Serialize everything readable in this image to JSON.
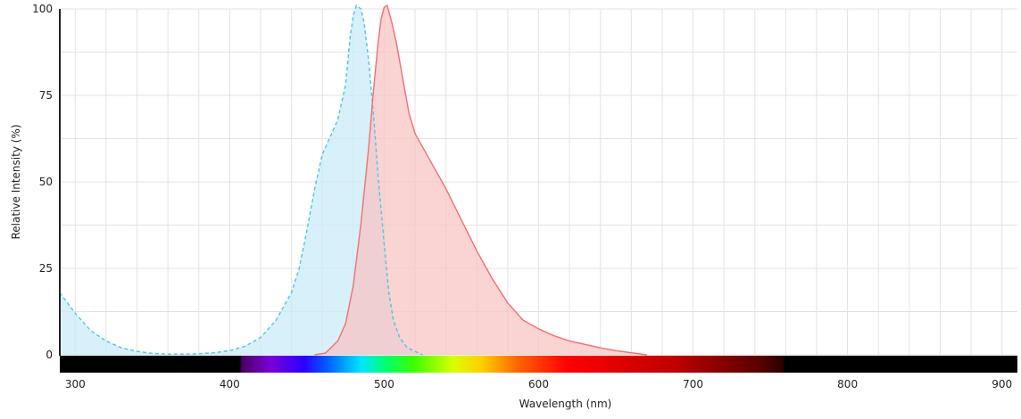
{
  "chart_data": {
    "type": "area",
    "xlabel": "Wavelength (nm)",
    "ylabel": "Relative Intensity (%)",
    "xlim": [
      290,
      910
    ],
    "ylim": [
      0,
      100
    ],
    "x_ticks": [
      300,
      400,
      500,
      600,
      700,
      800,
      900
    ],
    "y_ticks": [
      0,
      25,
      50,
      75,
      100
    ],
    "x_tick_labels": [
      "300",
      "400",
      "500",
      "600",
      "700",
      "800",
      "900"
    ],
    "y_tick_labels": [
      "0",
      "25",
      "50",
      "75",
      "100"
    ],
    "grid": true,
    "legend": "none",
    "spectrum_band": true,
    "series": [
      {
        "color": "#4fc3ea",
        "fill": "#c9ebf8",
        "line_style": "dashed",
        "points": [
          [
            290,
            18
          ],
          [
            300,
            12
          ],
          [
            310,
            7
          ],
          [
            320,
            4
          ],
          [
            330,
            2
          ],
          [
            340,
            1
          ],
          [
            350,
            0.4
          ],
          [
            360,
            0.2
          ],
          [
            370,
            0.2
          ],
          [
            380,
            0.3
          ],
          [
            390,
            0.6
          ],
          [
            400,
            1.2
          ],
          [
            410,
            2.5
          ],
          [
            420,
            5
          ],
          [
            430,
            10
          ],
          [
            440,
            18
          ],
          [
            445,
            25
          ],
          [
            450,
            36
          ],
          [
            455,
            48
          ],
          [
            460,
            58
          ],
          [
            465,
            63
          ],
          [
            470,
            68
          ],
          [
            475,
            78
          ],
          [
            478,
            92
          ],
          [
            480,
            98
          ],
          [
            482,
            101
          ],
          [
            485,
            100
          ],
          [
            487,
            96
          ],
          [
            490,
            85
          ],
          [
            493,
            70
          ],
          [
            496,
            52
          ],
          [
            500,
            32
          ],
          [
            503,
            18
          ],
          [
            506,
            10
          ],
          [
            510,
            5
          ],
          [
            515,
            2
          ],
          [
            520,
            1
          ],
          [
            525,
            0
          ]
        ]
      },
      {
        "color": "#f07070",
        "fill": "#f8c4c4",
        "line_style": "solid",
        "points": [
          [
            455,
            0
          ],
          [
            462,
            0.5
          ],
          [
            470,
            4
          ],
          [
            475,
            9
          ],
          [
            480,
            20
          ],
          [
            485,
            38
          ],
          [
            490,
            60
          ],
          [
            493,
            76
          ],
          [
            496,
            90
          ],
          [
            498,
            97
          ],
          [
            500,
            100.5
          ],
          [
            502,
            101
          ],
          [
            505,
            96
          ],
          [
            508,
            90
          ],
          [
            512,
            80
          ],
          [
            516,
            70
          ],
          [
            520,
            64
          ],
          [
            525,
            60
          ],
          [
            530,
            56
          ],
          [
            540,
            48
          ],
          [
            550,
            39
          ],
          [
            560,
            30
          ],
          [
            570,
            22
          ],
          [
            580,
            15
          ],
          [
            590,
            10
          ],
          [
            600,
            7.5
          ],
          [
            610,
            5.5
          ],
          [
            620,
            4
          ],
          [
            630,
            3
          ],
          [
            640,
            2
          ],
          [
            650,
            1.2
          ],
          [
            660,
            0.6
          ],
          [
            670,
            0
          ]
        ]
      }
    ]
  }
}
